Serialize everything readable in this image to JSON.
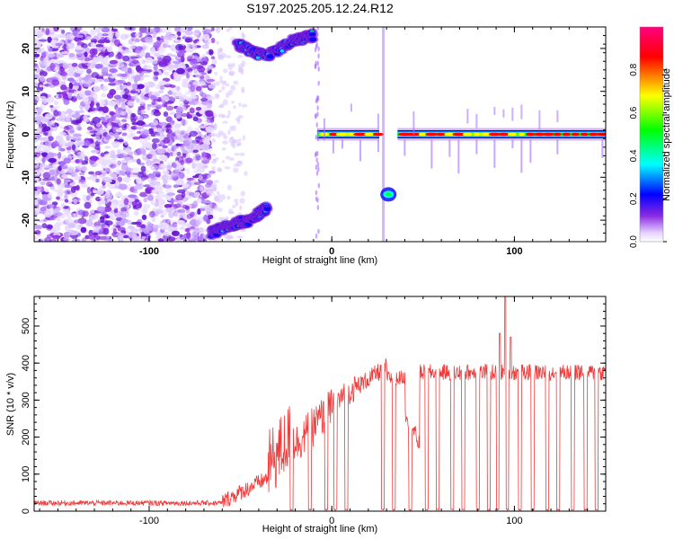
{
  "title": "S197.2025.205.12.24.R12",
  "chart_data": [
    {
      "type": "heatmap",
      "xlabel": "Height of straight line (km)",
      "ylabel": "Frequency (Hz)",
      "xlim": [
        -163,
        150
      ],
      "ylim": [
        -25,
        25
      ],
      "x_ticks": [
        -100,
        0,
        100
      ],
      "y_ticks": [
        -20,
        -10,
        0,
        10,
        20
      ],
      "colorbar": {
        "label": "Normalized spectral amplitude",
        "range": [
          0,
          1
        ],
        "ticks": [
          0.0,
          0.2,
          0.4,
          0.6,
          0.8
        ],
        "colors": [
          "#ffffff",
          "#8a2be2",
          "#0000ff",
          "#00ffff",
          "#00ff00",
          "#ffff00",
          "#ff0000",
          "#ff0080"
        ]
      },
      "features": [
        {
          "name": "noise",
          "x_range": [
            -163,
            -65
          ],
          "y_range": [
            -25,
            25
          ]
        },
        {
          "name": "upper-track",
          "points": [
            [
              -52,
              21
            ],
            [
              -36,
              18
            ],
            [
              -20,
              22
            ],
            [
              -10,
              23
            ]
          ]
        },
        {
          "name": "lower-track",
          "points": [
            [
              -66,
              -23
            ],
            [
              -55,
              -21
            ],
            [
              -45,
              -20
            ],
            [
              -35,
              -17
            ]
          ]
        },
        {
          "name": "central-line",
          "x_range": [
            -8,
            26
          ],
          "y": 0
        },
        {
          "name": "side-blob",
          "x": 31,
          "y": -14
        },
        {
          "name": "main-line",
          "x_range": [
            36,
            150
          ],
          "y": 0
        }
      ]
    },
    {
      "type": "line",
      "xlabel": "Height of straight line (km)",
      "ylabel": "SNR (10 * v/v)",
      "xlim": [
        -163,
        150
      ],
      "ylim": [
        0,
        580
      ],
      "x_ticks": [
        -100,
        0,
        100
      ],
      "y_ticks": [
        0,
        100,
        200,
        300,
        400,
        500
      ],
      "color": "#ef3b3b",
      "segments": [
        {
          "x": [
            -163,
            -60
          ],
          "y": [
            22,
            22
          ],
          "noise": 7
        },
        {
          "x": [
            -60,
            -35
          ],
          "y": [
            25,
            90
          ],
          "noise": 22
        },
        {
          "x": [
            -35,
            -20
          ],
          "y": [
            120,
            220
          ],
          "noise": 95
        },
        {
          "x": [
            -20,
            0
          ],
          "y": [
            180,
            280
          ],
          "noise": 55
        },
        {
          "x": [
            0,
            15
          ],
          "y": [
            290,
            340
          ],
          "noise": 35
        },
        {
          "x": [
            15,
            30
          ],
          "y": [
            340,
            390
          ],
          "noise": 25
        },
        {
          "x": [
            30,
            40
          ],
          "y": [
            360,
            360
          ],
          "noise": 20
        },
        {
          "x": [
            40,
            48
          ],
          "y": [
            270,
            180
          ],
          "noise": 25
        },
        {
          "x": [
            48,
            150
          ],
          "y": [
            375,
            375
          ],
          "noise": 22
        }
      ],
      "dropouts": [
        -22,
        -12,
        -3,
        2,
        8,
        28,
        34,
        43,
        52,
        58,
        66,
        72,
        80,
        86,
        91,
        96,
        103,
        110,
        118,
        124,
        132,
        139,
        145
      ],
      "peaks": [
        [
          95,
          580
        ],
        [
          92,
          480
        ],
        [
          98,
          470
        ]
      ]
    }
  ]
}
